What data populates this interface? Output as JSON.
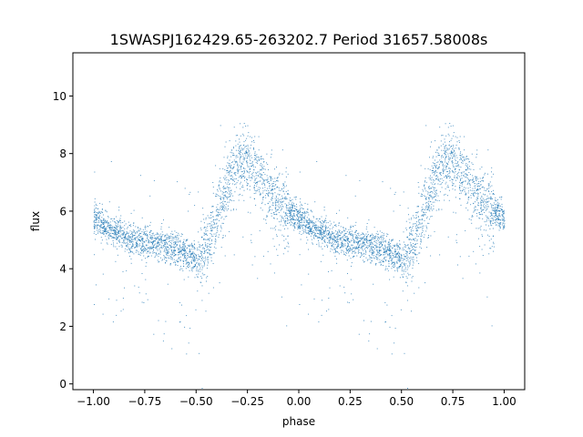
{
  "chart_data": {
    "type": "scatter",
    "title": "1SWASPJ162429.65-263202.7 Period 31657.58008s",
    "xlabel": "phase",
    "ylabel": "flux",
    "xlim": [
      -1.1,
      1.1
    ],
    "ylim": [
      -0.2,
      11.5
    ],
    "xticks": [
      -1.0,
      -0.75,
      -0.5,
      -0.25,
      0.0,
      0.25,
      0.5,
      0.75,
      1.0
    ],
    "xtick_labels": [
      "−1.00",
      "−0.75",
      "−0.50",
      "−0.25",
      "0.00",
      "0.25",
      "0.50",
      "0.75",
      "1.00"
    ],
    "yticks": [
      0,
      2,
      4,
      6,
      8,
      10
    ],
    "ytick_labels": [
      "0",
      "2",
      "4",
      "6",
      "8",
      "10"
    ],
    "grid": false,
    "legend": "none",
    "marker_color": "#1f77b4",
    "series": [
      {
        "description": "phase-folded light curve, pattern repeated over two cycles",
        "profile_phase": [
          0.0,
          0.05,
          0.1,
          0.2,
          0.3,
          0.4,
          0.45,
          0.5,
          0.55,
          0.6,
          0.65,
          0.7,
          0.75,
          0.8,
          0.85,
          0.9,
          0.95,
          1.0
        ],
        "profile_flux": [
          5.8,
          5.5,
          5.3,
          5.0,
          4.85,
          4.7,
          4.55,
          4.4,
          4.7,
          5.8,
          7.0,
          7.6,
          7.75,
          7.3,
          6.7,
          6.3,
          6.0,
          5.8
        ]
      }
    ]
  }
}
